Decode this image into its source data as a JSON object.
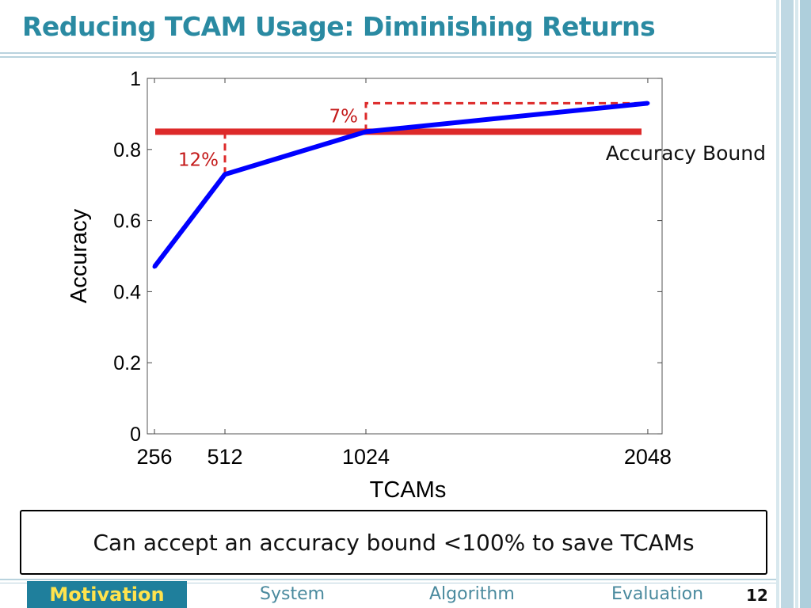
{
  "slide": {
    "title": "Reducing TCAM Usage: Diminishing Returns",
    "callout": "Can accept an accuracy bound <100% to save TCAMs",
    "page_number": "12"
  },
  "nav": {
    "active": "Motivation",
    "items": [
      "System",
      "Algorithm",
      "Evaluation"
    ]
  },
  "colors": {
    "title": "#2a8aa2",
    "line": "#0000ff",
    "bound": "#dd2a2a",
    "nav_active_bg": "#1f7f9c",
    "nav_active_text": "#ffe34d"
  },
  "chart_data": {
    "type": "line",
    "x": [
      256,
      512,
      1024,
      2048
    ],
    "series": [
      {
        "values": [
          0.47,
          0.73,
          0.85,
          0.93
        ]
      }
    ],
    "xlabel": "TCAMs",
    "ylabel": "Accuracy",
    "xticks": [
      "256",
      "512",
      "1024",
      "2048"
    ],
    "yticks": [
      "0",
      "0.2",
      "0.4",
      "0.6",
      "0.8",
      "1"
    ],
    "ylim": [
      0,
      1
    ],
    "xlim": [
      230,
      2100
    ],
    "grid": false,
    "bound": {
      "label": "Accuracy Bound",
      "value": 0.85
    },
    "annotations": [
      {
        "label": "12%",
        "x": 512
      },
      {
        "label": "7%",
        "x": 1024
      }
    ]
  }
}
